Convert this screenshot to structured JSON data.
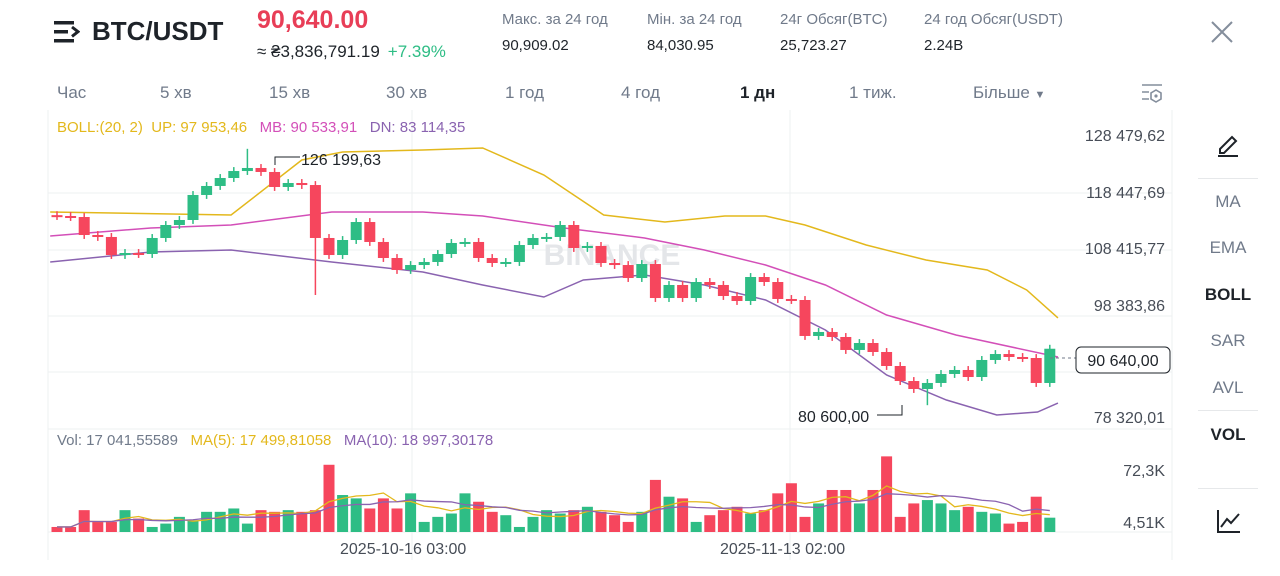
{
  "header": {
    "pair": "BTC/USDT",
    "price": "90,640.00",
    "fiat": "≈ ₴3,836,791.19",
    "change": "+7.39%",
    "stats": [
      {
        "label": "Макс. за 24 год",
        "value": "90,909.02"
      },
      {
        "label": "Мін. за 24 год",
        "value": "84,030.95"
      },
      {
        "label": "24г Обсяг(BTC)",
        "value": "25,723.27"
      },
      {
        "label": "24 год Обсяг(USDT)",
        "value": "2.24B"
      }
    ]
  },
  "tabs": [
    "Час",
    "5 хв",
    "15 хв",
    "30 хв",
    "1 год",
    "4 год",
    "1 дн",
    "1 тиж.",
    "Більше"
  ],
  "active_tab": "1 дн",
  "boll_legend": {
    "name": "BOLL:(20, 2)",
    "up": "UP: 97 953,46",
    "mb": "MB: 90 533,91",
    "dn": "DN: 83 114,35"
  },
  "vol_legend": {
    "vol": "Vol: 17 041,55589",
    "ma5": "MA(5): 17 499,81058",
    "ma10": "MA(10): 18 997,30178"
  },
  "price_axis": [
    "128 479,62",
    "118 447,69",
    "108 415,77",
    "98 383,86",
    "78 320,01"
  ],
  "vol_axis": [
    "72,3K",
    "4,51K"
  ],
  "x_axis": [
    "2025-10-16 03:00",
    "2025-11-13 02:00"
  ],
  "annotations": {
    "high": "126 199,63",
    "low": "80 600,00",
    "last": "90 640,00"
  },
  "watermark": "BINANCE",
  "side_menu": [
    "MA",
    "EMA",
    "BOLL",
    "SAR",
    "AVL",
    "VOL"
  ],
  "colors": {
    "up": "#2ebd85",
    "down": "#f6465d",
    "boll_up": "#e3b81c",
    "boll_mb": "#d34fb8",
    "boll_dn": "#8a63b0",
    "ma5": "#e3b81c",
    "ma10": "#8a63b0"
  },
  "chart_data": {
    "type": "candlestick",
    "price_range": [
      78320.01,
      128479.62
    ],
    "closes": [
      114250,
      114070,
      110870,
      110520,
      107310,
      107670,
      107490,
      110340,
      112650,
      113540,
      117990,
      119590,
      121010,
      122250,
      122790,
      122080,
      119410,
      120120,
      119760,
      110340,
      107310,
      109980,
      113180,
      109630,
      106780,
      104650,
      105530,
      106070,
      107490,
      109450,
      109630,
      106780,
      105890,
      106070,
      109090,
      110340,
      110520,
      112650,
      108560,
      108920,
      105890,
      105530,
      103220,
      105710,
      99660,
      101980,
      99660,
      102510,
      101980,
      100020,
      99130,
      103400,
      102510,
      99490,
      99310,
      92910,
      93620,
      92730,
      90420,
      91660,
      90060,
      87570,
      84900,
      83480,
      84550,
      86150,
      86860,
      85610,
      88640,
      89700,
      89170,
      88990,
      84550,
      90640
    ],
    "extremes": {
      "high": {
        "index": 14,
        "value": 126199.63
      },
      "low": {
        "index": 64,
        "value": 80600.0
      }
    },
    "boll_up": [
      [
        -0.5,
        114960
      ],
      [
        12.8,
        114430
      ],
      [
        18,
        124210
      ],
      [
        21,
        125630
      ],
      [
        26.9,
        125990
      ],
      [
        31.3,
        126350
      ],
      [
        35.8,
        121540
      ],
      [
        40.2,
        114430
      ],
      [
        44.7,
        113180
      ],
      [
        49.1,
        114250
      ],
      [
        52.1,
        114250
      ],
      [
        55,
        112650
      ],
      [
        59.5,
        109090
      ],
      [
        63.9,
        106420
      ],
      [
        68.4,
        104650
      ],
      [
        71.3,
        101090
      ],
      [
        73.6,
        96110
      ]
    ],
    "boll_mb": [
      [
        -0.5,
        110690
      ],
      [
        6.9,
        112120
      ],
      [
        12.8,
        112650
      ],
      [
        20.2,
        114960
      ],
      [
        26.9,
        114960
      ],
      [
        31.3,
        114250
      ],
      [
        37.3,
        112120
      ],
      [
        43.2,
        110340
      ],
      [
        47.6,
        108200
      ],
      [
        52.1,
        105530
      ],
      [
        56.5,
        101980
      ],
      [
        61,
        96640
      ],
      [
        66.1,
        93080
      ],
      [
        73.6,
        89170
      ]
    ],
    "boll_dn": [
      [
        -0.5,
        106070
      ],
      [
        6.9,
        107850
      ],
      [
        12.8,
        108200
      ],
      [
        20.2,
        106070
      ],
      [
        26.9,
        104290
      ],
      [
        31.3,
        101980
      ],
      [
        35.8,
        99840
      ],
      [
        38.7,
        102870
      ],
      [
        43.2,
        103760
      ],
      [
        47.6,
        101980
      ],
      [
        52.1,
        99310
      ],
      [
        56.5,
        93970
      ],
      [
        61,
        85970
      ],
      [
        65.4,
        81520
      ],
      [
        69.1,
        78850
      ],
      [
        72.1,
        79380
      ],
      [
        73.6,
        80980
      ]
    ],
    "volumes_k": [
      6,
      6,
      26,
      12,
      12,
      26,
      16,
      6,
      10,
      18,
      14,
      24,
      24,
      28,
      10,
      26,
      24,
      26,
      24,
      26,
      80,
      44,
      40,
      28,
      40,
      28,
      46,
      12,
      18,
      22,
      46,
      36,
      24,
      20,
      6,
      18,
      26,
      22,
      26,
      30,
      24,
      20,
      12,
      24,
      62,
      42,
      40,
      12,
      20,
      26,
      30,
      22,
      26,
      46,
      58,
      18,
      34,
      50,
      50,
      34,
      50,
      90,
      18,
      34,
      38,
      34,
      26,
      30,
      24,
      22,
      10,
      12,
      42,
      17.04
    ]
  }
}
